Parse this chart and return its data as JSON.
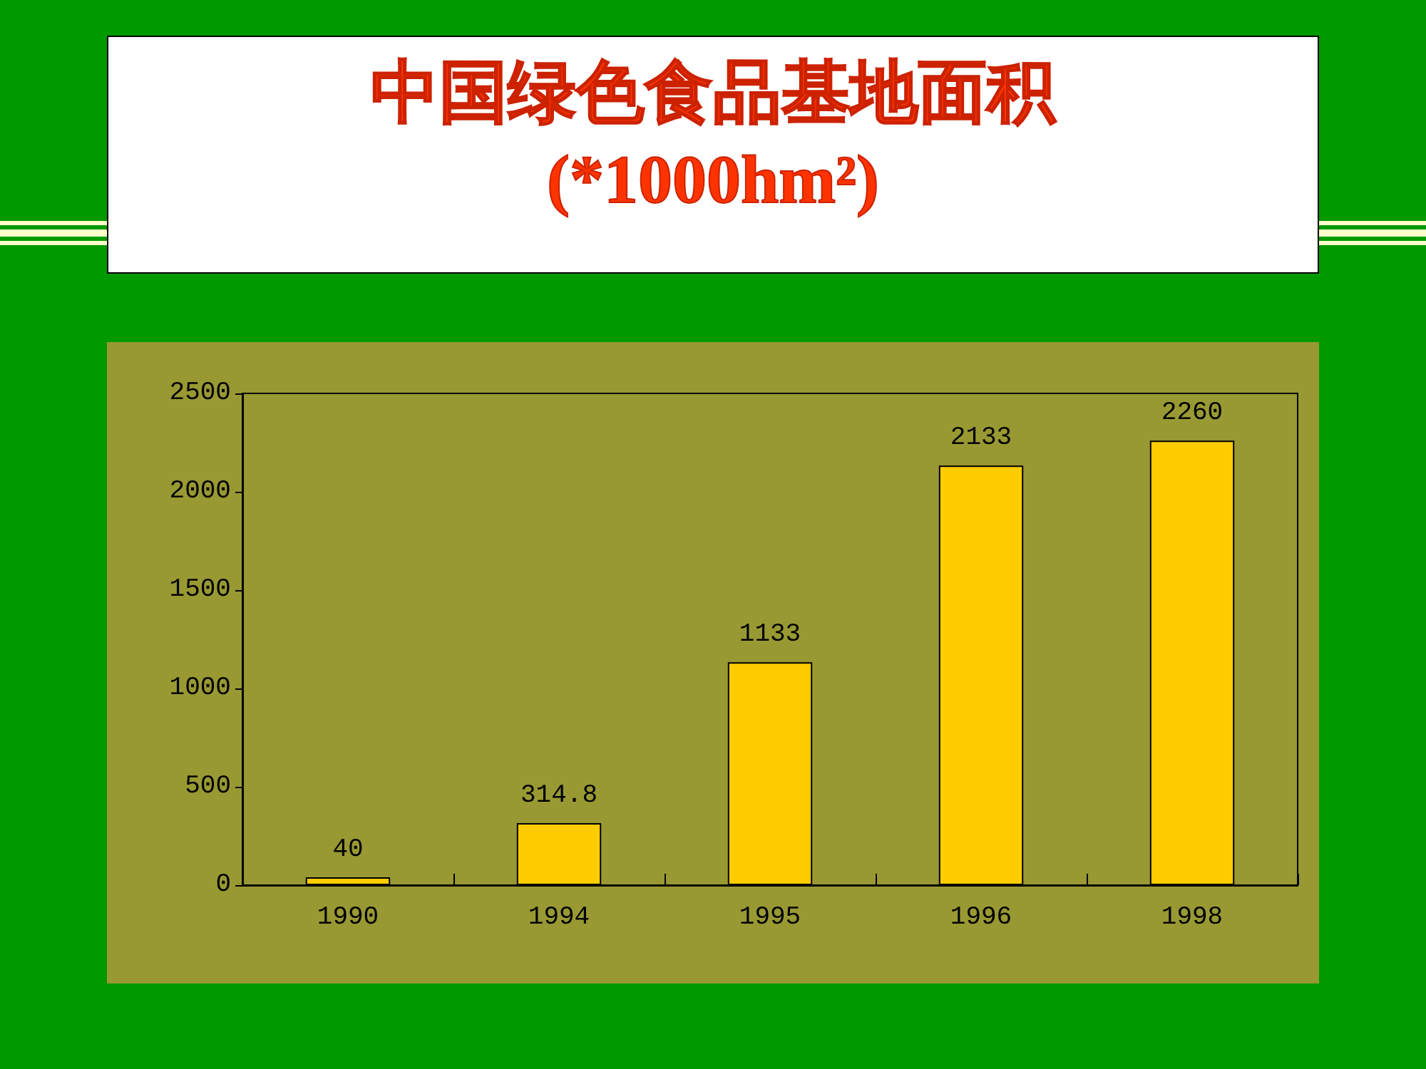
{
  "chart_data": {
    "type": "bar",
    "title": "中国绿色食品基地面积",
    "subtitle": "(*1000hm²)",
    "categories": [
      "1990",
      "1994",
      "1995",
      "1996",
      "1998"
    ],
    "values": [
      40,
      314.8,
      1133,
      2133,
      2260
    ],
    "color": "#ffcc00",
    "ylim": [
      0,
      2500
    ],
    "yticks": [
      0,
      500,
      1000,
      1500,
      2000,
      2500
    ],
    "grid": false,
    "data_labels": true
  }
}
